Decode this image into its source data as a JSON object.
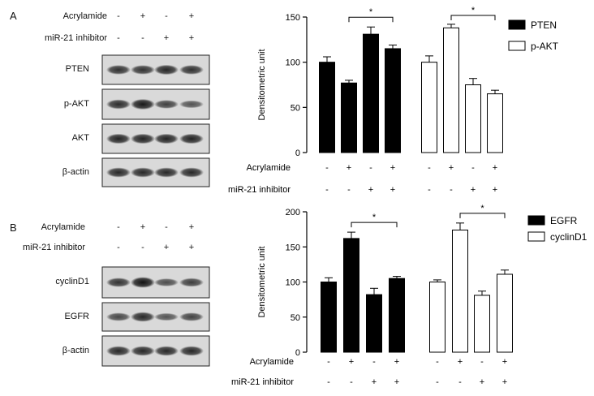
{
  "panels": [
    {
      "letter": "A",
      "treatments": [
        {
          "label": "Acrylamide",
          "signs": [
            "-",
            "+",
            "-",
            "+"
          ]
        },
        {
          "label": "miR-21 inhibitor",
          "signs": [
            "-",
            "-",
            "+",
            "+"
          ]
        }
      ],
      "blots": [
        {
          "label": "PTEN",
          "intensity": [
            0.72,
            0.7,
            0.8,
            0.72
          ]
        },
        {
          "label": "p-AKT",
          "intensity": [
            0.75,
            0.9,
            0.6,
            0.45
          ]
        },
        {
          "label": "AKT",
          "intensity": [
            0.82,
            0.82,
            0.82,
            0.82
          ]
        },
        {
          "label": "β-actin",
          "intensity": [
            0.78,
            0.78,
            0.78,
            0.78
          ]
        }
      ]
    },
    {
      "letter": "B",
      "treatments": [
        {
          "label": "Acrylamide",
          "signs": [
            "-",
            "+",
            "-",
            "+"
          ]
        },
        {
          "label": "miR-21 inhibitor",
          "signs": [
            "-",
            "-",
            "+",
            "+"
          ]
        }
      ],
      "blots": [
        {
          "label": "cyclinD1",
          "intensity": [
            0.7,
            0.95,
            0.5,
            0.62
          ]
        },
        {
          "label": "EGFR",
          "intensity": [
            0.55,
            0.78,
            0.45,
            0.58
          ]
        },
        {
          "label": "β-actin",
          "intensity": [
            0.78,
            0.78,
            0.78,
            0.78
          ]
        }
      ]
    }
  ],
  "chart_data": [
    {
      "type": "bar",
      "ylabel": "Densitometric  unit",
      "ylim": [
        0,
        150
      ],
      "yticks": [
        0,
        50,
        100,
        150
      ],
      "series": [
        {
          "name": "PTEN",
          "fill": "#000000",
          "values": [
            100,
            77,
            131,
            115
          ],
          "errors": [
            6,
            3,
            8,
            4
          ]
        },
        {
          "name": "p-AKT",
          "fill": "#ffffff",
          "values": [
            100,
            138,
            75,
            65
          ],
          "errors": [
            7,
            4,
            7,
            4
          ]
        }
      ],
      "significance": [
        {
          "series": 0,
          "from": 1,
          "to": 3,
          "label": "*"
        },
        {
          "series": 1,
          "from": 1,
          "to": 3,
          "label": "*"
        }
      ],
      "rows": [
        {
          "label": "Acrylamide",
          "signs": [
            "-",
            "+",
            "-",
            "+",
            "-",
            "+",
            "-",
            "+"
          ]
        },
        {
          "label": "miR-21 inhibitor",
          "signs": [
            "-",
            "-",
            "+",
            "+",
            "-",
            "-",
            "+",
            "+"
          ]
        }
      ],
      "legend": "top-right"
    },
    {
      "type": "bar",
      "ylabel": "Densitometric  unit",
      "ylim": [
        0,
        200
      ],
      "yticks": [
        0,
        50,
        100,
        150,
        200
      ],
      "series": [
        {
          "name": "EGFR",
          "fill": "#000000",
          "values": [
            100,
            162,
            82,
            105
          ],
          "errors": [
            6,
            9,
            9,
            3
          ]
        },
        {
          "name": "cyclinD1",
          "fill": "#ffffff",
          "values": [
            100,
            174,
            81,
            111
          ],
          "errors": [
            3,
            10,
            6,
            6
          ]
        }
      ],
      "significance": [
        {
          "series": 0,
          "from": 1,
          "to": 3,
          "label": "*"
        },
        {
          "series": 1,
          "from": 1,
          "to": 3,
          "label": "*"
        }
      ],
      "rows": [
        {
          "label": "Acrylamide",
          "signs": [
            "-",
            "+",
            "-",
            "+",
            "-",
            "+",
            "-",
            "+"
          ]
        },
        {
          "label": "miR-21 inhibitor",
          "signs": [
            "-",
            "-",
            "+",
            "+",
            "-",
            "-",
            "+",
            "+"
          ]
        }
      ],
      "legend": "top-right"
    }
  ]
}
